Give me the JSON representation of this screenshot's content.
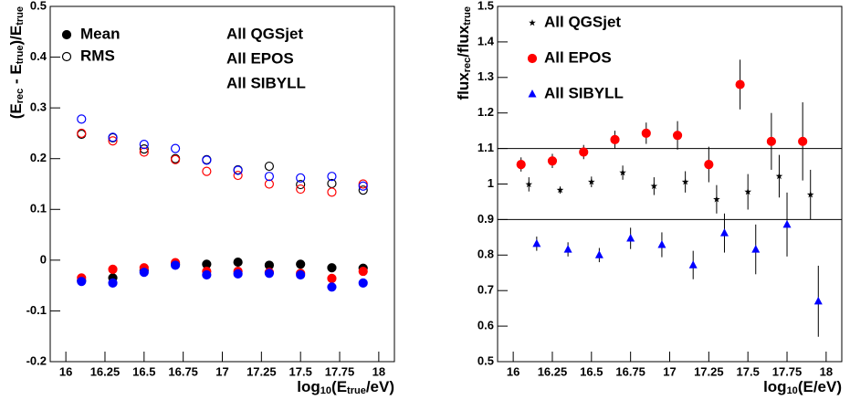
{
  "chart_data": [
    {
      "type": "scatter",
      "ylabel": [
        "(E",
        "rec",
        " - E",
        "true",
        ")/E",
        "true"
      ],
      "xlabel": [
        "log",
        "10",
        "(E",
        "true",
        "/eV)"
      ],
      "xlim": [
        15.9,
        18.1
      ],
      "xticks": [
        16,
        16.25,
        16.5,
        16.75,
        17,
        17.25,
        17.5,
        17.75,
        18
      ],
      "ylim": [
        -0.2,
        0.5
      ],
      "yticks": [
        -0.2,
        -0.1,
        0,
        0.1,
        0.2,
        0.3,
        0.4,
        0.5
      ],
      "markers": [
        {
          "name": "Mean",
          "style": "filled"
        },
        {
          "name": "RMS",
          "style": "open"
        }
      ],
      "x": [
        16.1,
        16.3,
        16.5,
        16.7,
        16.9,
        17.1,
        17.3,
        17.5,
        17.7,
        17.9
      ],
      "series": [
        {
          "name": "All QGSjet",
          "color": "#000000",
          "mean": [
            -0.04,
            -0.035,
            -0.02,
            -0.008,
            -0.008,
            -0.004,
            -0.01,
            -0.008,
            -0.015,
            -0.016
          ],
          "rms": [
            0.248,
            0.241,
            0.219,
            0.2,
            0.198,
            0.178,
            0.185,
            0.149,
            0.151,
            0.138
          ]
        },
        {
          "name": "All EPOS",
          "color": "#ff0000",
          "mean": [
            -0.035,
            -0.018,
            -0.015,
            -0.005,
            -0.022,
            -0.022,
            -0.024,
            -0.026,
            -0.036,
            -0.022
          ],
          "rms": [
            0.25,
            0.235,
            0.213,
            0.198,
            0.175,
            0.167,
            0.15,
            0.14,
            0.134,
            0.15
          ]
        },
        {
          "name": "All SIBYLL",
          "color": "#0000ff",
          "mean": [
            -0.042,
            -0.045,
            -0.024,
            -0.01,
            -0.029,
            -0.027,
            -0.026,
            -0.029,
            -0.053,
            -0.045
          ],
          "rms": [
            0.278,
            0.242,
            0.228,
            0.22,
            0.197,
            0.177,
            0.165,
            0.162,
            0.165,
            0.146
          ]
        }
      ]
    },
    {
      "type": "errorbar",
      "ylabel": [
        "flux",
        "rec",
        "/flux",
        "true"
      ],
      "xlabel": [
        "log",
        "10",
        "(E/eV)"
      ],
      "xlim": [
        15.9,
        18.1
      ],
      "xticks": [
        16,
        16.25,
        16.5,
        16.75,
        17,
        17.25,
        17.5,
        17.75,
        18
      ],
      "ylim": [
        0.5,
        1.5
      ],
      "yticks": [
        0.5,
        0.6,
        0.7,
        0.8,
        0.9,
        1,
        1.1,
        1.2,
        1.3,
        1.4,
        1.5
      ],
      "hlines": [
        1.1,
        0.9
      ],
      "series": [
        {
          "name": "All QGSjet",
          "color": "#000000",
          "marker": "star",
          "x": [
            16.1,
            16.3,
            16.5,
            16.7,
            16.9,
            17.1,
            17.3,
            17.5,
            17.7,
            17.9
          ],
          "values": [
            0.999,
            0.983,
            1.006,
            1.032,
            0.994,
            1.006,
            0.957,
            0.978,
            1.022,
            0.97
          ],
          "errors": [
            0.02,
            0.01,
            0.015,
            0.02,
            0.025,
            0.03,
            0.04,
            0.05,
            0.06,
            0.07
          ]
        },
        {
          "name": "All EPOS",
          "color": "#ff0000",
          "marker": "circle",
          "x": [
            16.05,
            16.25,
            16.45,
            16.65,
            16.85,
            17.05,
            17.25,
            17.45,
            17.65,
            17.85
          ],
          "values": [
            1.055,
            1.065,
            1.09,
            1.125,
            1.143,
            1.137,
            1.055,
            1.28,
            1.12,
            1.12
          ],
          "errors": [
            0.02,
            0.02,
            0.02,
            0.025,
            0.03,
            0.04,
            0.05,
            0.07,
            0.08,
            0.11
          ]
        },
        {
          "name": "All SIBYLL",
          "color": "#0000ff",
          "marker": "triangle",
          "x": [
            16.15,
            16.35,
            16.55,
            16.75,
            16.95,
            17.15,
            17.35,
            17.55,
            17.75,
            17.95
          ],
          "values": [
            0.832,
            0.816,
            0.8,
            0.847,
            0.829,
            0.772,
            0.862,
            0.816,
            0.886,
            0.67
          ],
          "errors": [
            0.02,
            0.02,
            0.02,
            0.03,
            0.035,
            0.04,
            0.055,
            0.07,
            0.09,
            0.1
          ]
        }
      ]
    }
  ]
}
